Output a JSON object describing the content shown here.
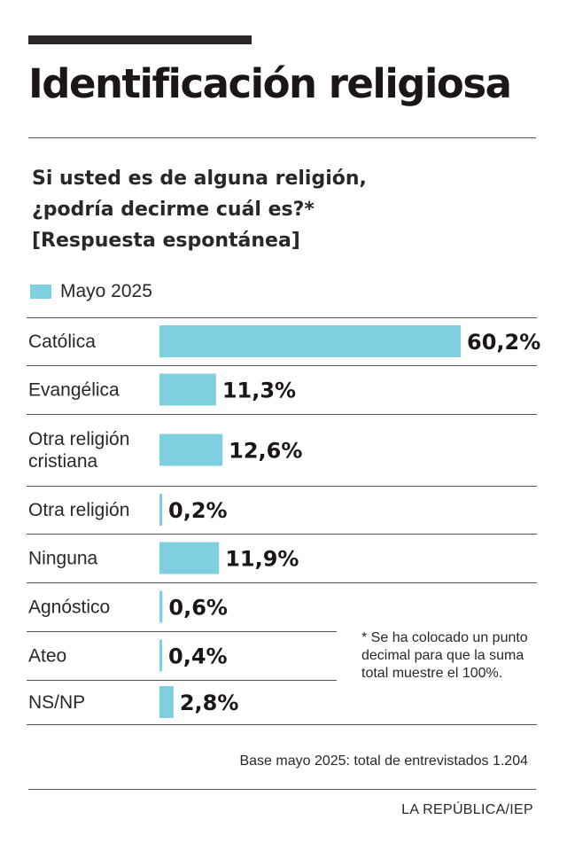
{
  "header": {
    "title": "Identificación religiosa",
    "question_lines": [
      "Si usted es de alguna religión,",
      "¿podría decirme cuál es?*",
      "[Respuesta espontánea]"
    ]
  },
  "colors": {
    "bar": "#7ecfe0",
    "rule": "#555555",
    "text": "#2b2726"
  },
  "chart_data": {
    "type": "bar",
    "orientation": "horizontal",
    "categories": [
      [
        "Católica"
      ],
      [
        "Evangélica"
      ],
      [
        "Otra religión",
        "cristiana"
      ],
      [
        "Otra religión"
      ],
      [
        "Ninguna"
      ],
      [
        "Agnóstico"
      ],
      [
        "Ateo"
      ],
      [
        "NS/NP"
      ]
    ],
    "series": [
      {
        "name": "Mayo 2025",
        "values": [
          60.2,
          11.3,
          12.6,
          0.2,
          11.9,
          0.6,
          0.4,
          2.8
        ]
      }
    ],
    "value_labels": [
      "60,2%",
      "11,3%",
      "12,6%",
      "0,2%",
      "11,9%",
      "0,6%",
      "0,4%",
      "2,8%"
    ],
    "xlim": [
      0,
      60.2
    ],
    "legend_position": "top-left",
    "grid": false
  },
  "footnote": "* Se ha colocado un punto decimal para que la suma total muestre el 100%.",
  "base_note": "Base mayo 2025: total de entrevistados 1.204",
  "source": "LA REPÚBLICA/IEP"
}
